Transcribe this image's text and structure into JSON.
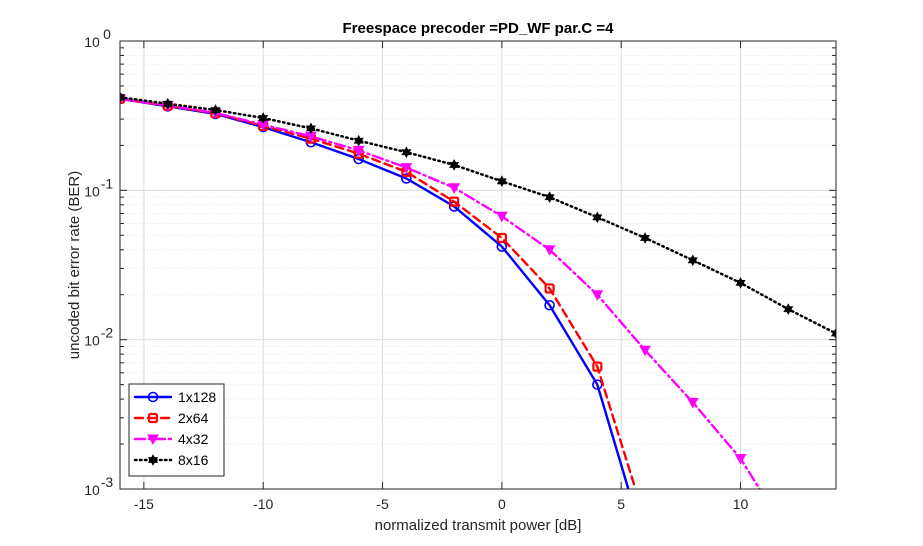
{
  "chart_data": {
    "type": "line",
    "title": "Freespace precoder =PD_WF par.C =4",
    "xlabel": "normalized transmit power [dB]",
    "ylabel": "uncoded bit error rate (BER)",
    "xlim": [
      -16,
      14
    ],
    "ylim": [
      0.001,
      1
    ],
    "yscale": "log",
    "grid": true,
    "minor_grid": true,
    "legend_position": "bottom-left",
    "x_ticks": [
      -15,
      -10,
      -5,
      0,
      5,
      10
    ],
    "x_tick_labels": [
      "-15",
      "-10",
      "-5",
      "0",
      "5",
      "10"
    ],
    "y_ticks": [
      {
        "value": 1,
        "base": "10",
        "exp": "0"
      },
      {
        "value": 0.1,
        "base": "10",
        "exp": "-1"
      },
      {
        "value": 0.01,
        "base": "10",
        "exp": "-2"
      },
      {
        "value": 0.001,
        "base": "10",
        "exp": "-3"
      }
    ],
    "series": [
      {
        "name": "1x128",
        "color": "#0000ff",
        "line_style": "solid",
        "marker": "circle",
        "x": [
          -16,
          -14,
          -12,
          -10,
          -8,
          -6,
          -4,
          -2,
          0,
          2,
          4,
          5.3
        ],
        "y": [
          0.41,
          0.365,
          0.325,
          0.265,
          0.21,
          0.162,
          0.12,
          0.078,
          0.042,
          0.017,
          0.005,
          0.001
        ],
        "marker_count": 11
      },
      {
        "name": "2x64",
        "color": "#ff0000",
        "line_style": "dashed",
        "marker": "square",
        "x": [
          -16,
          -14,
          -12,
          -10,
          -8,
          -6,
          -4,
          -2,
          0,
          2,
          4,
          5.6
        ],
        "y": [
          0.41,
          0.368,
          0.328,
          0.27,
          0.222,
          0.176,
          0.133,
          0.084,
          0.048,
          0.022,
          0.0066,
          0.001
        ],
        "marker_count": 11
      },
      {
        "name": "4x32",
        "color": "#ff00ff",
        "line_style": "dashdot",
        "marker": "triangle-down",
        "x": [
          -16,
          -14,
          -12,
          -10,
          -8,
          -6,
          -4,
          -2,
          0,
          2,
          4,
          6,
          8,
          10,
          10.8
        ],
        "y": [
          0.41,
          0.37,
          0.33,
          0.275,
          0.23,
          0.185,
          0.142,
          0.104,
          0.067,
          0.04,
          0.02,
          0.0085,
          0.0038,
          0.0016,
          0.001
        ],
        "marker_count": 14
      },
      {
        "name": "8x16",
        "color": "#000000",
        "line_style": "dotted",
        "marker": "hexagram",
        "x": [
          -16,
          -14,
          -12,
          -10,
          -8,
          -6,
          -4,
          -2,
          0,
          2,
          4,
          6,
          8,
          10,
          12,
          14
        ],
        "y": [
          0.42,
          0.38,
          0.345,
          0.305,
          0.26,
          0.215,
          0.18,
          0.148,
          0.115,
          0.09,
          0.066,
          0.048,
          0.034,
          0.024,
          0.016,
          0.011
        ],
        "marker_count": 16
      }
    ]
  }
}
